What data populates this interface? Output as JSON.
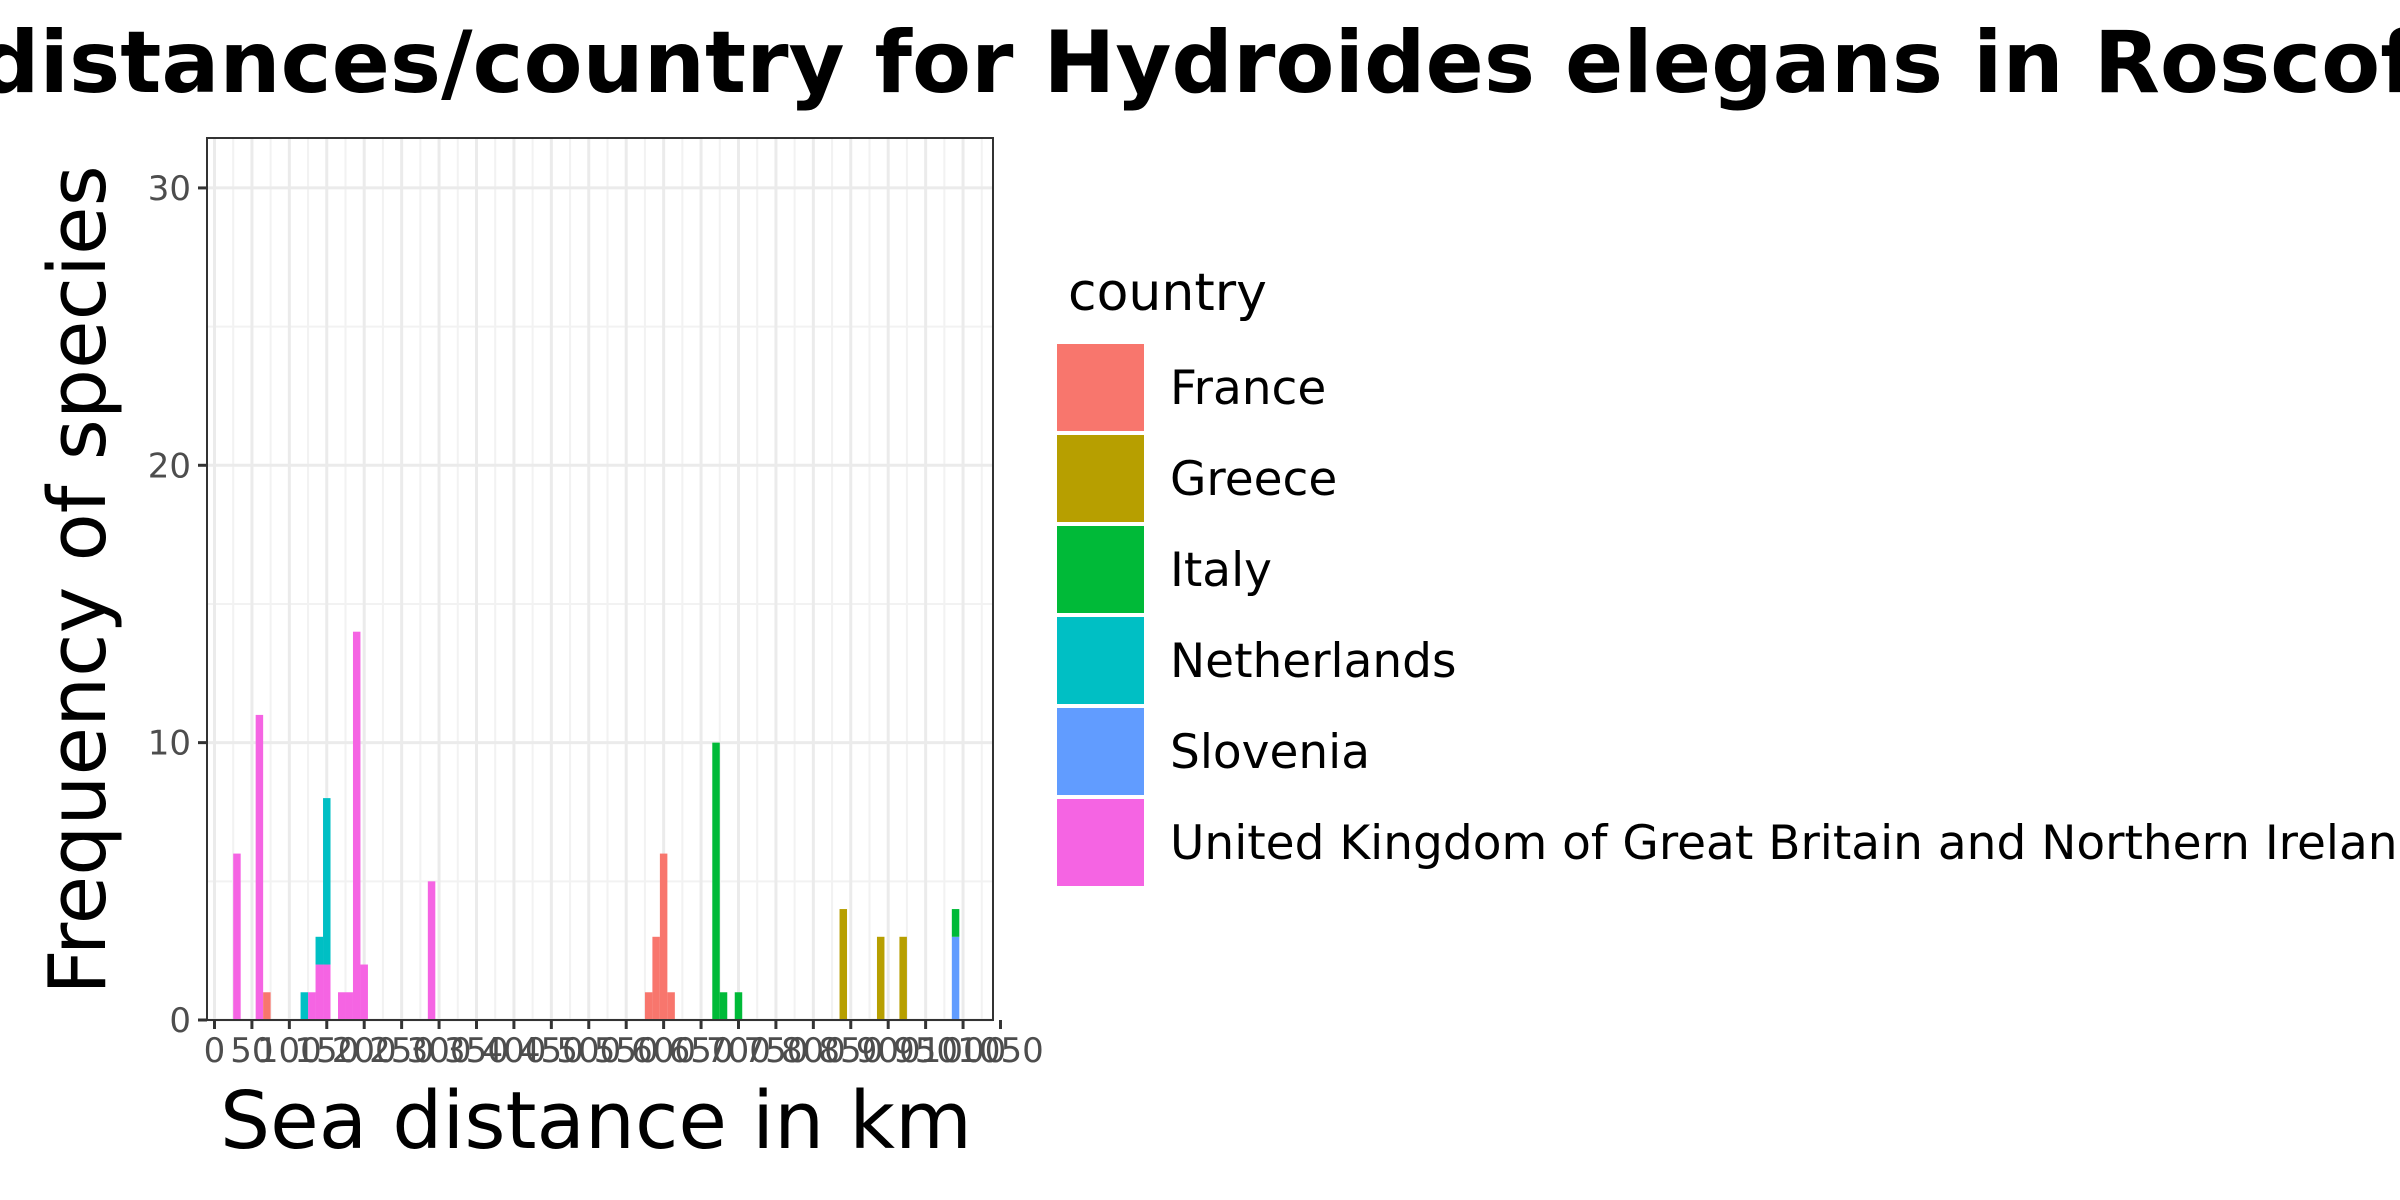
{
  "chart_data": {
    "type": "bar",
    "stacked": true,
    "title": "distances/country for Hydroides elegans in Roscoff",
    "xlabel": "Sea distance in km",
    "ylabel": "Frequency of species",
    "xlim": [
      -10,
      1040
    ],
    "ylim": [
      0,
      31.8
    ],
    "bin_width": 10,
    "x_ticks": [
      0,
      50,
      100,
      150,
      200,
      250,
      300,
      350,
      400,
      450,
      500,
      550,
      600,
      650,
      700,
      750,
      800,
      850,
      900,
      950,
      1000,
      1050
    ],
    "x_tick_labels": [
      "0",
      "50",
      "100",
      "150",
      "200",
      "250",
      "300",
      "350",
      "400",
      "450",
      "500",
      "550",
      "600",
      "650",
      "700",
      "750",
      "800",
      "850",
      "900",
      "950",
      "1000",
      "1050"
    ],
    "y_ticks": [
      0,
      10,
      20,
      30
    ],
    "y_tick_labels": [
      "0",
      "10",
      "20",
      "30"
    ],
    "grid": true,
    "legend_position": "right",
    "legend_title": "country",
    "colors": {
      "France": "#F8766D",
      "Greece": "#B79F00",
      "Italy": "#00BA38",
      "Netherlands": "#00BFC4",
      "Slovenia": "#619CFF",
      "United Kingdom of Great Britain and Northern Ireland": "#F564E3"
    },
    "series": [
      {
        "name": "France",
        "points": [
          {
            "x": 70,
            "y": 1
          },
          {
            "x": 580,
            "y": 1
          },
          {
            "x": 590,
            "y": 3
          },
          {
            "x": 600,
            "y": 6
          },
          {
            "x": 610,
            "y": 1
          }
        ]
      },
      {
        "name": "Greece",
        "points": [
          {
            "x": 840,
            "y": 4
          },
          {
            "x": 890,
            "y": 3
          },
          {
            "x": 920,
            "y": 3
          }
        ]
      },
      {
        "name": "Italy",
        "points": [
          {
            "x": 670,
            "y": 10
          },
          {
            "x": 680,
            "y": 1
          },
          {
            "x": 700,
            "y": 1
          },
          {
            "x": 990,
            "y": 1
          }
        ]
      },
      {
        "name": "Netherlands",
        "points": [
          {
            "x": 120,
            "y": 1
          },
          {
            "x": 140,
            "y": 1
          },
          {
            "x": 150,
            "y": 6
          }
        ]
      },
      {
        "name": "Slovenia",
        "points": [
          {
            "x": 990,
            "y": 3
          }
        ]
      },
      {
        "name": "United Kingdom of Great Britain and Northern Ireland",
        "points": [
          {
            "x": 30,
            "y": 6
          },
          {
            "x": 60,
            "y": 11
          },
          {
            "x": 130,
            "y": 1
          },
          {
            "x": 140,
            "y": 2
          },
          {
            "x": 150,
            "y": 2
          },
          {
            "x": 170,
            "y": 1
          },
          {
            "x": 180,
            "y": 1
          },
          {
            "x": 190,
            "y": 14
          },
          {
            "x": 200,
            "y": 2
          },
          {
            "x": 290,
            "y": 5
          }
        ]
      }
    ]
  }
}
